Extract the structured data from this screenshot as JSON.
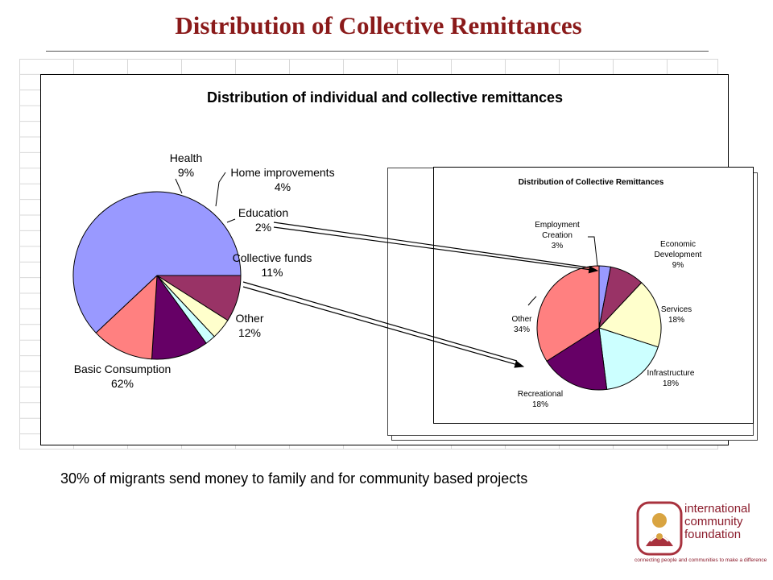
{
  "slide": {
    "title": "Distribution of Collective Remittances",
    "caption": "30% of migrants send money to family and for community based projects"
  },
  "logo": {
    "line1": "international",
    "line2": "community",
    "line3": "foundation",
    "tagline": "connecting people and communities to make a difference",
    "brand_color": "#8a1a2a"
  },
  "chart_data": [
    {
      "type": "pie",
      "title": "Distribution of individual and collective remittances",
      "start_angle_deg": 0,
      "direction": "clockwise",
      "slices": [
        {
          "label": "Health",
          "value": 9,
          "value_label": "9%",
          "color": "#993366"
        },
        {
          "label": "Home improvements",
          "value": 4,
          "value_label": "4%",
          "color": "#ffffcc"
        },
        {
          "label": "Education",
          "value": 2,
          "value_label": "2%",
          "color": "#ccffff"
        },
        {
          "label": "Collective funds",
          "value": 11,
          "value_label": "11%",
          "color": "#660066"
        },
        {
          "label": "Other",
          "value": 12,
          "value_label": "12%",
          "color": "#ff8080"
        },
        {
          "label": "Basic Consumption",
          "value": 62,
          "value_label": "62%",
          "color": "#9999ff"
        }
      ]
    },
    {
      "type": "pie",
      "title": "Distribution of Collective Remittances",
      "start_angle_deg": 90,
      "direction": "clockwise",
      "slices": [
        {
          "label": "Employment Creation",
          "value": 3,
          "value_label": "3%",
          "color": "#9999ff"
        },
        {
          "label": "Economic Development",
          "value": 9,
          "value_label": "9%",
          "color": "#993366"
        },
        {
          "label": "Services",
          "value": 18,
          "value_label": "18%",
          "color": "#ffffcc"
        },
        {
          "label": "Infrastructure",
          "value": 18,
          "value_label": "18%",
          "color": "#ccffff"
        },
        {
          "label": "Recreational",
          "value": 18,
          "value_label": "18%",
          "color": "#660066"
        },
        {
          "label": "Other",
          "value": 34,
          "value_label": "34%",
          "color": "#ff8080"
        }
      ]
    }
  ]
}
